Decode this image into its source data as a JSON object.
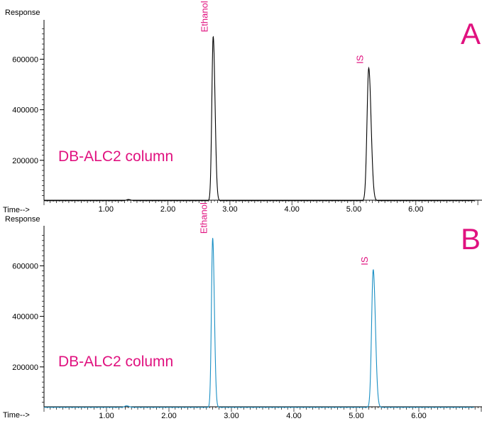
{
  "chart_data": [
    {
      "type": "line",
      "panel_letter": "A",
      "ylabel": "Response",
      "xlabel": "Time-->",
      "annotation": "DB-ALC2 column",
      "line_color": "#000000",
      "xlim": [
        0.0,
        7.0
      ],
      "ylim": [
        0,
        720000
      ],
      "x_ticks": [
        "1.00",
        "2.00",
        "3.00",
        "4.00",
        "5.00",
        "6.00"
      ],
      "y_ticks": [
        "200000",
        "400000",
        "600000"
      ],
      "baseline": 40000,
      "peaks": [
        {
          "label": "",
          "x": 1.36,
          "y": 45000,
          "width": 0.03
        },
        {
          "label": "Ethanol",
          "x": 2.73,
          "y": 690000,
          "width": 0.022
        },
        {
          "label": "IS",
          "x": 5.24,
          "y": 565000,
          "width": 0.028
        }
      ]
    },
    {
      "type": "line",
      "panel_letter": "B",
      "ylabel": "Response",
      "xlabel": "Time-->",
      "annotation": "DB-ALC2 column",
      "line_color": "#1a8fc4",
      "xlim": [
        0.0,
        7.0
      ],
      "ylim": [
        0,
        720000
      ],
      "x_ticks": [
        "1.00",
        "2.00",
        "3.00",
        "4.00",
        "5.00",
        "6.00"
      ],
      "y_ticks": [
        "200000",
        "400000",
        "600000"
      ],
      "baseline": 40000,
      "peaks": [
        {
          "label": "",
          "x": 1.32,
          "y": 46000,
          "width": 0.03
        },
        {
          "label": "Ethanol",
          "x": 2.7,
          "y": 710000,
          "width": 0.02
        },
        {
          "label": "IS",
          "x": 5.27,
          "y": 585000,
          "width": 0.026
        }
      ]
    }
  ],
  "colors": {
    "label": "#e0117f",
    "axis": "#000000"
  }
}
